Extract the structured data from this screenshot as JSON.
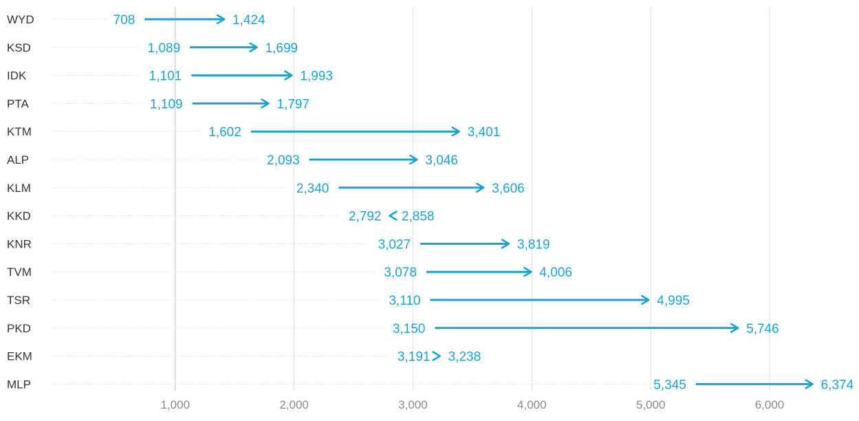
{
  "chart_data": {
    "type": "arrow",
    "categories": [
      "WYD",
      "KSD",
      "IDK",
      "PTA",
      "KTM",
      "ALP",
      "KLM",
      "KKD",
      "KNR",
      "TVM",
      "TSR",
      "PKD",
      "EKM",
      "MLP"
    ],
    "series": [
      {
        "values": [
          708,
          1089,
          1101,
          1109,
          1602,
          2093,
          2340,
          2858,
          3027,
          3078,
          3110,
          3150,
          3191,
          5345
        ]
      },
      {
        "values": [
          1424,
          1699,
          1993,
          1797,
          3401,
          3046,
          3606,
          2792,
          3819,
          4006,
          4995,
          5746,
          3238,
          6374
        ]
      }
    ],
    "value_labels_start": [
      "708",
      "1,089",
      "1,101",
      "1,109",
      "1,602",
      "2,093",
      "2,340",
      "2,858",
      "3,027",
      "3,078",
      "3,110",
      "3,150",
      "3,191",
      "5,345"
    ],
    "value_labels_end": [
      "1,424",
      "1,699",
      "1,993",
      "1,797",
      "3,401",
      "3,046",
      "3,606",
      "2,792",
      "3,819",
      "4,006",
      "4,995",
      "5,746",
      "3,238",
      "6,374"
    ],
    "x_ticks": [
      1000,
      2000,
      3000,
      4000,
      5000,
      6000
    ],
    "x_tick_labels": [
      "1,000",
      "2,000",
      "3,000",
      "4,000",
      "5,000",
      "6,000"
    ],
    "xlim": [
      -40,
      6700
    ],
    "grid": true,
    "title": "",
    "xlabel": "",
    "ylabel": "",
    "colors": {
      "arrow": "#1ba3cc",
      "grid": "#dddddd",
      "row_guide": "#d8d8d8",
      "axis_text": "#888888",
      "category_text": "#333333"
    }
  }
}
